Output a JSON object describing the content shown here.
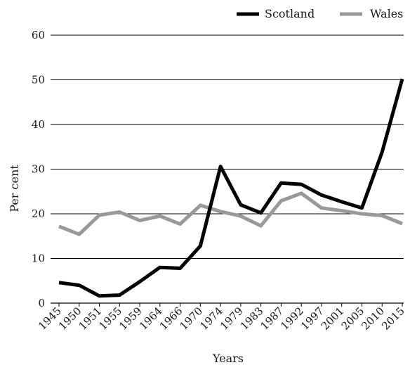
{
  "chart_data": {
    "type": "line",
    "title": "",
    "xlabel": "Years",
    "ylabel": "Per cent",
    "categories": [
      "1945",
      "1950",
      "1951",
      "1955",
      "1959",
      "1964",
      "1966",
      "1970",
      "1974",
      "1979",
      "1983",
      "1987",
      "1992",
      "1997",
      "2001",
      "2005",
      "2010",
      "2015"
    ],
    "ylim": [
      0,
      60
    ],
    "yticks": [
      "0",
      "10",
      "20",
      "30",
      "40",
      "50",
      "60"
    ],
    "grid": "horizontal",
    "legend_position": "top-right",
    "series": [
      {
        "name": "Scotland",
        "color": "#000000",
        "values": [
          4.6,
          4.0,
          1.6,
          1.8,
          4.8,
          8.0,
          7.8,
          12.8,
          30.6,
          22.0,
          20.2,
          26.9,
          26.6,
          24.2,
          22.7,
          21.3,
          33.8,
          50.2
        ]
      },
      {
        "name": "Wales",
        "color": "#999999",
        "values": [
          17.2,
          15.4,
          19.7,
          20.4,
          18.5,
          19.5,
          17.7,
          21.9,
          20.5,
          19.5,
          17.3,
          22.9,
          24.6,
          21.3,
          20.7,
          20.0,
          19.6,
          17.8
        ]
      }
    ]
  }
}
